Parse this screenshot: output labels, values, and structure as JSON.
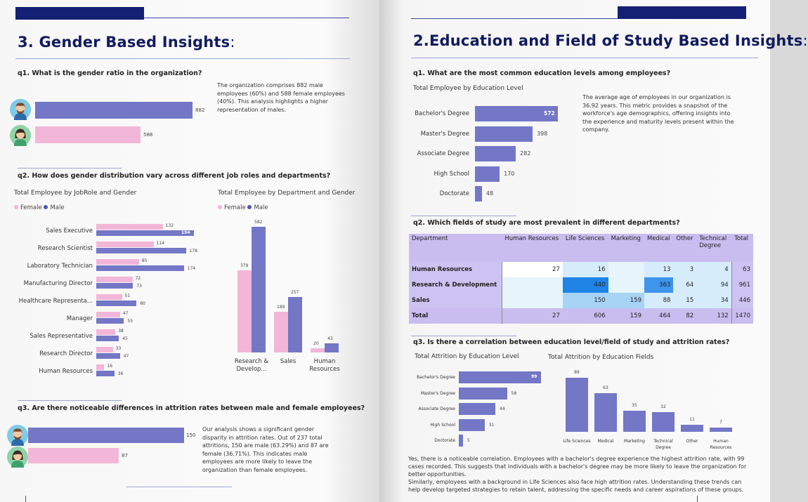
{
  "left": {
    "section_title": "3. Gender Based Insights",
    "title_colon": ":",
    "q1": {
      "question": "q1. What is the gender ratio in the organization?",
      "male_count": "882",
      "female_count": "588",
      "description": "The organization comprises 882 male employees (60%) and 588 female employees (40%). This analysis highlights a higher representation of males."
    },
    "q2": {
      "question": "q2. How does gender distribution vary across different job roles and departments?",
      "jobrole_chart_title": "Total Employee by JobRole and Gender",
      "dept_chart_title": "Total Employee by Department and Gender",
      "legend_female": "Female",
      "legend_male": "Male"
    },
    "q3": {
      "question": "q3. Are there noticeable differences in attrition rates between male and female employees?",
      "male_attrition": "150",
      "female_attrition": "87",
      "description": "Our analysis shows a significant gender disparity in attrition rates. Out of 237 total attritions, 150 are male (63.29%) and 87 are female (36.71%). This indicates male employees are more likely to leave the organization than female employees."
    }
  },
  "right": {
    "section_title": "2.Education and Field of Study Based Insights",
    "title_colon": ":",
    "q1": {
      "question": "q1. What are the most common education levels among employees?",
      "chart_title": "Total Employee by Education Level",
      "description": "The average age of employees in our organization is 36.92 years. This metric provides a snapshot of the workforce's age demographics, offering insights into the experience and maturity levels present within the company."
    },
    "q2": {
      "question": "q2. Which fields of study are most prevalent in different departments?",
      "columns": [
        "Department",
        "Human Resources",
        "Life Sciences",
        "Marketing",
        "Medical",
        "Other",
        "Technical Degree",
        "Total"
      ],
      "rows": [
        {
          "dept": "Human Resources",
          "cells": [
            "27",
            "16",
            "",
            "13",
            "3",
            "4",
            "63"
          ]
        },
        {
          "dept": "Research & Development",
          "cells": [
            "",
            "440",
            "",
            "363",
            "64",
            "94",
            "961"
          ]
        },
        {
          "dept": "Sales",
          "cells": [
            "",
            "150",
            "159",
            "88",
            "15",
            "34",
            "446"
          ]
        }
      ],
      "total_row": {
        "dept": "Total",
        "cells": [
          "27",
          "606",
          "159",
          "464",
          "82",
          "132",
          "1470"
        ]
      }
    },
    "q3": {
      "question": "q3. Is there a correlation between education level/field of study and attrition rates?",
      "edu_chart_title": "Total Attrition by Education Level",
      "field_chart_title": "Total Attrition by Education Fields",
      "conclusion1": "Yes, there is a noticeable correlation. Employees with a bachelor's degree experience the highest attrition rate, with 99 cases recorded. This suggests that individuals with a bachelor's degree may be more likely to leave the organization for better opportunities.",
      "conclusion2": "Similarly, employees with a background in Life Sciences also face high attrition rates. Understanding these trends can help develop targeted strategies to retain talent, addressing the specific needs and career aspirations of these groups."
    }
  },
  "colors": {
    "navy": "#142073",
    "male": "#7377c6",
    "female": "#f2b6d8",
    "table_header": "#c9bdf0"
  },
  "chart_data": [
    {
      "type": "bar",
      "title": "Total Employee by JobRole and Gender",
      "orientation": "horizontal",
      "categories": [
        "Sales Executive",
        "Research Scientist",
        "Laboratory Technician",
        "Manufacturing Director",
        "Healthcare Representa...",
        "Manager",
        "Sales Representative",
        "Research Director",
        "Human Resources"
      ],
      "series": [
        {
          "name": "Female",
          "values": [
            132,
            114,
            85,
            72,
            51,
            47,
            38,
            33,
            16
          ]
        },
        {
          "name": "Male",
          "values": [
            194,
            178,
            174,
            73,
            80,
            55,
            45,
            47,
            36
          ]
        }
      ],
      "legend": "top-left"
    },
    {
      "type": "bar",
      "title": "Total Employee by Department and Gender",
      "categories": [
        "Research & Develop...",
        "Sales",
        "Human Resources"
      ],
      "series": [
        {
          "name": "Female",
          "values": [
            379,
            189,
            20
          ]
        },
        {
          "name": "Male",
          "values": [
            582,
            257,
            43
          ]
        }
      ],
      "legend": "top-left"
    },
    {
      "type": "bar",
      "title": "Total Employee by Education Level",
      "orientation": "horizontal",
      "categories": [
        "Bachelor's Degree",
        "Master's Degree",
        "Associate Degree",
        "High School",
        "Doctorate"
      ],
      "values": [
        572,
        398,
        282,
        170,
        48
      ]
    },
    {
      "type": "bar",
      "title": "Total Attrition by Education Level",
      "orientation": "horizontal",
      "categories": [
        "Bachelor's Degree",
        "Master's Degree",
        "Associate Degree",
        "High School",
        "Doctorate"
      ],
      "values": [
        99,
        58,
        44,
        31,
        5
      ]
    },
    {
      "type": "bar",
      "title": "Total Attrition by Education Fields",
      "categories": [
        "Life Sciences",
        "Medical",
        "Marketing",
        "Technical Degree",
        "Other",
        "Human Resources"
      ],
      "values": [
        89,
        63,
        35,
        32,
        11,
        7
      ]
    }
  ]
}
